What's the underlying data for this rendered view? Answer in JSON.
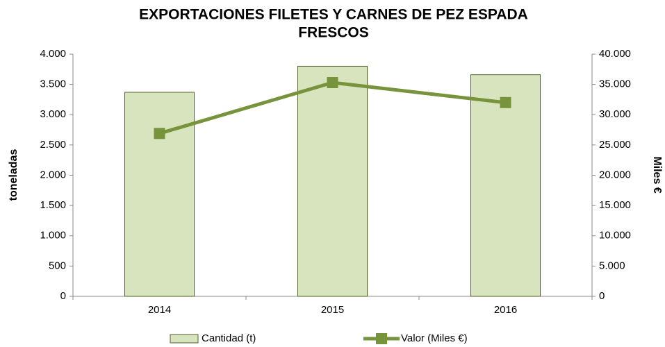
{
  "chart_data": {
    "type": "bar_line",
    "title": [
      "EXPORTACIONES  FILETES Y CARNES DE PEZ ESPADA",
      "FRESCOS"
    ],
    "ylabel": "toneladas",
    "y2label": "Miles €",
    "categories": [
      "2014",
      "2015",
      "2016"
    ],
    "series": [
      {
        "name": "Cantidad (t)",
        "type": "bar",
        "color": "#d7e4bd",
        "edge": "#4f6228",
        "values": [
          3370,
          3800,
          3660
        ]
      },
      {
        "name": "Valor (Miles €)",
        "type": "line",
        "axis": "y2",
        "color": "#77933c",
        "values": [
          26900,
          35300,
          32000
        ]
      }
    ],
    "ylim": [
      0,
      4000
    ],
    "yticks": [
      0,
      500,
      {
        "value": 1000,
        "label": "1.000"
      },
      {
        "value": 1500,
        "label": "1.500"
      },
      {
        "value": 2000,
        "label": "2.000"
      },
      {
        "value": 2500,
        "label": "2.500"
      },
      {
        "value": 3000,
        "label": "3.000"
      },
      {
        "value": 3500,
        "label": "3.500"
      },
      {
        "value": 4000,
        "label": "4.000"
      }
    ],
    "y2lim": [
      0,
      40000
    ],
    "y2ticks": [
      0,
      {
        "value": 5000,
        "label": "5.000"
      },
      {
        "value": 10000,
        "label": "10.000"
      },
      {
        "value": 15000,
        "label": "15.000"
      },
      {
        "value": 20000,
        "label": "20.000"
      },
      {
        "value": 25000,
        "label": "25.000"
      },
      {
        "value": 30000,
        "label": "30.000"
      },
      {
        "value": 35000,
        "label": "35.000"
      },
      {
        "value": 40000,
        "label": "40.000"
      }
    ],
    "grid": false,
    "legend": "bottom"
  }
}
